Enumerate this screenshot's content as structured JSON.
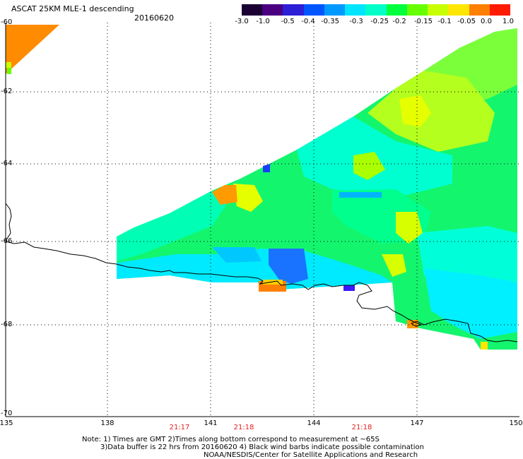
{
  "title": "ASCAT 25KM MLE-1 descending",
  "date": "20160620",
  "colorbar": {
    "tick_labels": [
      "-3.0",
      "-1.0",
      "-0.5",
      "-0.4",
      "-0.35",
      "-0.3",
      "-0.25",
      "-0.2",
      "-0.15",
      "-0.1",
      "-0.05",
      "0.0",
      "1.0"
    ],
    "colors": [
      "#1a0033",
      "#4b0082",
      "#2d1fd6",
      "#0055ff",
      "#0099ff",
      "#00e5ff",
      "#00ffc8",
      "#00ff3c",
      "#66ff00",
      "#c8ff00",
      "#ffe600",
      "#ff7f00",
      "#ff1a00"
    ]
  },
  "lat_labels": [
    "-60",
    "-62",
    "-64",
    "-66",
    "-68",
    "-70"
  ],
  "lon_labels": [
    "135",
    "138",
    "141",
    "144",
    "147",
    "150"
  ],
  "time_labels": [
    "21:17",
    "21:18",
    "21:18"
  ],
  "notes": [
    "Note: 1) Times are GMT 2)Times along bottom correspond to measurement at ~65S",
    "3)Data buffer is 22 hrs from 20160620 4) Black wind barbs indicate possible contamination",
    "NOAA/NESDIS/Center for Satellite Applications and Research"
  ]
}
